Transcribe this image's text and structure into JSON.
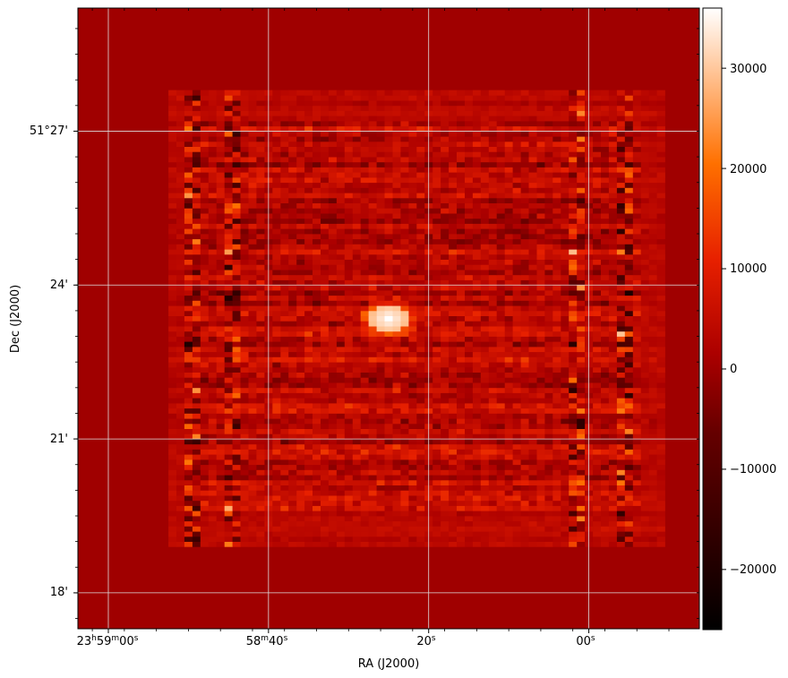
{
  "chart_data": {
    "type": "heatmap",
    "title": "",
    "xlabel": "RA (J2000)",
    "ylabel": "Dec (J2000)",
    "x_ticks": [
      {
        "main": "23",
        "sup1": "h",
        "mid": "59",
        "sup2": "m",
        "tail": "00",
        "sup3": "s",
        "ra_sec": 0
      },
      {
        "main": "",
        "sup1": "",
        "mid": "58",
        "sup2": "m",
        "tail": "40",
        "sup3": "s",
        "ra_sec": 20
      },
      {
        "main": "",
        "sup1": "",
        "mid": "",
        "sup2": "",
        "tail": "20",
        "sup3": "s",
        "ra_sec": 40
      },
      {
        "main": "",
        "sup1": "",
        "mid": "",
        "sup2": "",
        "tail": "00",
        "sup3": "s",
        "ra_sec": 60
      }
    ],
    "y_ticks": [
      {
        "label": "51°27'",
        "dec_arcmin": 27
      },
      {
        "label": "24'",
        "dec_arcmin": 24
      },
      {
        "label": "21'",
        "dec_arcmin": 21
      },
      {
        "label": "18'",
        "dec_arcmin": 18
      }
    ],
    "x_range_ra_sec": [
      -3.8,
      73.8
    ],
    "y_range_dec_arcmin": [
      17.3,
      29.4
    ],
    "grid": true,
    "colormap": "gist_heat",
    "colorbar": {
      "min": -26000,
      "max": 36000,
      "ticks": [
        {
          "value": 30000,
          "label": "30000"
        },
        {
          "value": 20000,
          "label": "20000"
        },
        {
          "value": 10000,
          "label": "10000"
        },
        {
          "value": 0,
          "label": "0"
        },
        {
          "value": -10000,
          "label": "−10000"
        },
        {
          "value": -20000,
          "label": "−20000"
        }
      ]
    },
    "background_value": 3500,
    "coverage": {
      "ra_sec": [
        7.5,
        69.5
      ],
      "dec_arcmin": [
        18.9,
        27.8
      ]
    },
    "stripe_columns_ra_sec": [
      10,
      15,
      58,
      64
    ],
    "bright_source": {
      "ra_sec": 34.5,
      "dec_arcmin": 23.3,
      "value": 36000
    },
    "colors": {
      "background": "#a00000",
      "grid": "#dddddd",
      "frame": "#000000"
    }
  }
}
